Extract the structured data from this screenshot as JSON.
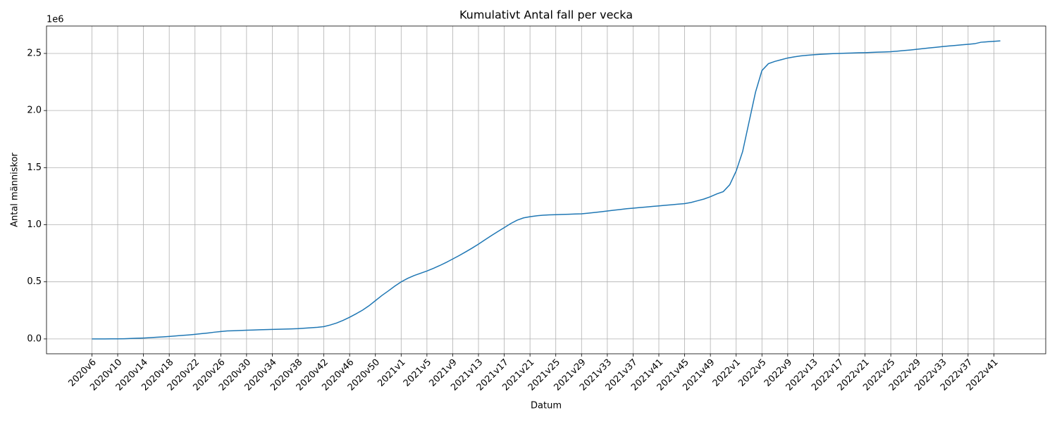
{
  "chart_data": {
    "type": "line",
    "title": "Kumulativt Antal fall per vecka",
    "xlabel": "Datum",
    "ylabel": "Antal människor",
    "y_offset_label": "1e6",
    "color": "#1f77b4",
    "grid": true,
    "categories": [
      "2020v6",
      null,
      null,
      null,
      "2020v10",
      null,
      null,
      null,
      "2020v14",
      null,
      null,
      null,
      "2020v18",
      null,
      null,
      null,
      "2020v22",
      null,
      null,
      null,
      "2020v26",
      null,
      null,
      null,
      "2020v30",
      null,
      null,
      null,
      "2020v34",
      null,
      null,
      null,
      "2020v38",
      null,
      null,
      null,
      "2020v42",
      null,
      null,
      null,
      "2020v46",
      null,
      null,
      null,
      "2020v50",
      null,
      null,
      null,
      "2021v1",
      null,
      null,
      null,
      "2021v5",
      null,
      null,
      null,
      "2021v9",
      null,
      null,
      null,
      "2021v13",
      null,
      null,
      null,
      "2021v17",
      null,
      null,
      null,
      "2021v21",
      null,
      null,
      null,
      "2021v25",
      null,
      null,
      null,
      "2021v29",
      null,
      null,
      null,
      "2021v33",
      null,
      null,
      null,
      "2021v37",
      null,
      null,
      null,
      "2021v41",
      null,
      null,
      null,
      "2021v45",
      null,
      null,
      null,
      "2021v49",
      null,
      null,
      null,
      "2022v1",
      null,
      null,
      null,
      "2022v5",
      null,
      null,
      null,
      "2022v9",
      null,
      null,
      null,
      "2022v13",
      null,
      null,
      null,
      "2022v17",
      null,
      null,
      null,
      "2022v21",
      null,
      null,
      null,
      "2022v25",
      null,
      null,
      null,
      "2022v29",
      null,
      null,
      null,
      "2022v33",
      null,
      null,
      null,
      "2022v37",
      null,
      null,
      null,
      "2022v41",
      null
    ],
    "values": [
      0,
      0,
      0,
      1000,
      1000,
      2000,
      4000,
      6000,
      8000,
      11000,
      15000,
      18000,
      22000,
      26000,
      31000,
      35000,
      40000,
      46000,
      52000,
      59000,
      65000,
      70000,
      72000,
      74000,
      76000,
      78000,
      80000,
      82000,
      83000,
      85000,
      86000,
      88000,
      90000,
      94000,
      98000,
      102000,
      108000,
      122000,
      140000,
      163000,
      190000,
      220000,
      252000,
      290000,
      335000,
      380000,
      420000,
      462000,
      500000,
      530000,
      555000,
      575000,
      595000,
      618000,
      643000,
      670000,
      700000,
      730000,
      762000,
      795000,
      830000,
      868000,
      905000,
      940000,
      975000,
      1010000,
      1040000,
      1060000,
      1070000,
      1078000,
      1083000,
      1086000,
      1088000,
      1090000,
      1092000,
      1094000,
      1096000,
      1101000,
      1107000,
      1113000,
      1120000,
      1127000,
      1133000,
      1140000,
      1145000,
      1150000,
      1155000,
      1160000,
      1165000,
      1170000,
      1175000,
      1180000,
      1185000,
      1195000,
      1210000,
      1225000,
      1245000,
      1270000,
      1290000,
      1350000,
      1470000,
      1640000,
      1900000,
      2160000,
      2350000,
      2410000,
      2430000,
      2445000,
      2460000,
      2470000,
      2478000,
      2484000,
      2488000,
      2492000,
      2495000,
      2498000,
      2500000,
      2502000,
      2504000,
      2506000,
      2507000,
      2509000,
      2511000,
      2513000,
      2515000,
      2520000,
      2525000,
      2530000,
      2536000,
      2542000,
      2548000,
      2554000,
      2560000,
      2565000,
      2570000,
      2575000,
      2580000,
      2585000,
      2598000,
      2602000,
      2606000,
      2610000
    ],
    "ylim": [
      -130000,
      2740000
    ],
    "yticks": [
      {
        "value": 0,
        "label": "0.0"
      },
      {
        "value": 500000,
        "label": "0.5"
      },
      {
        "value": 1000000,
        "label": "1.0"
      },
      {
        "value": 1500000,
        "label": "1.5"
      },
      {
        "value": 2000000,
        "label": "2.0"
      },
      {
        "value": 2500000,
        "label": "2.5"
      }
    ]
  }
}
